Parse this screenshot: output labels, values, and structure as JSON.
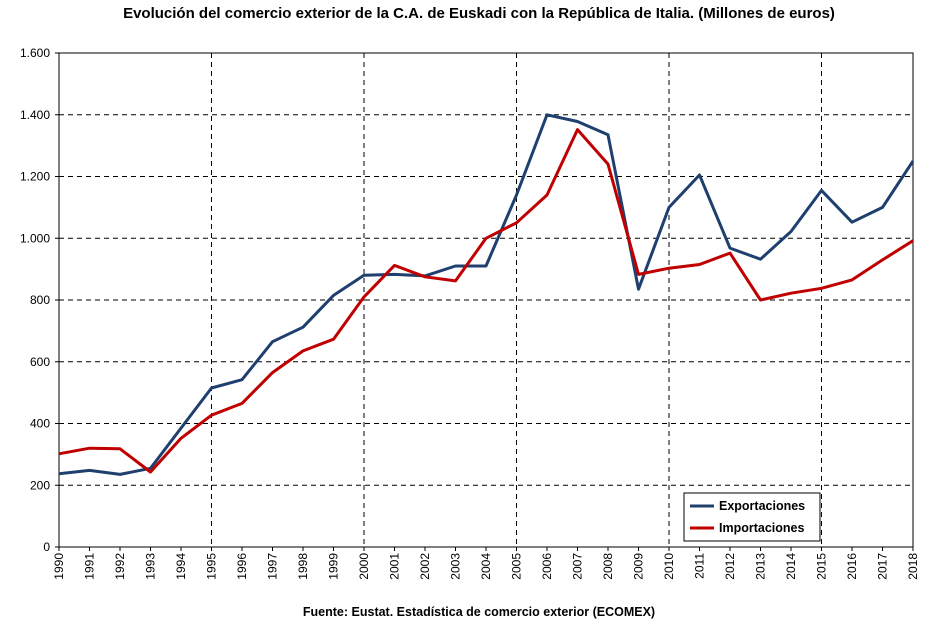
{
  "chart_data": {
    "type": "line",
    "title": "Evolución del comercio exterior de la C.A. de Euskadi con la República de Italia.  (Millones de euros)",
    "source": "Fuente: Eustat.  Estadística  de comercio exterior (ECOMEX)",
    "x": [
      "1990",
      "1991",
      "1992",
      "1993",
      "1994",
      "1995",
      "1996",
      "1997",
      "1998",
      "1999",
      "2000",
      "2001",
      "2002",
      "2003",
      "2004",
      "2005",
      "2006",
      "2007",
      "2008",
      "2009",
      "2010",
      "2011",
      "2012",
      "2013",
      "2014",
      "2015",
      "2016",
      "2017",
      "2018"
    ],
    "ylim": [
      0,
      1600
    ],
    "yticks": [
      0,
      200,
      400,
      600,
      800,
      1000,
      1200,
      1400,
      1600
    ],
    "ytick_labels": [
      "0",
      "200",
      "400",
      "600",
      "800",
      "1.000",
      "1.200",
      "1.400",
      "1.600"
    ],
    "grid": "dashed",
    "legend_position": "bottom-right",
    "series": [
      {
        "name": "Exportaciones",
        "color": "#1f3f6e",
        "values": [
          237,
          248,
          235,
          255,
          385,
          515,
          542,
          665,
          712,
          815,
          880,
          883,
          878,
          910,
          910,
          1140,
          1400,
          1378,
          1335,
          835,
          1100,
          1205,
          968,
          932,
          1022,
          1155,
          1052,
          1100,
          1250
        ]
      },
      {
        "name": "Importaciones",
        "color": "#c00000",
        "values": [
          302,
          320,
          318,
          243,
          352,
          427,
          465,
          565,
          635,
          673,
          810,
          912,
          875,
          862,
          1000,
          1050,
          1140,
          1352,
          1240,
          883,
          903,
          915,
          952,
          800,
          822,
          838,
          865,
          930,
          992
        ]
      }
    ]
  }
}
